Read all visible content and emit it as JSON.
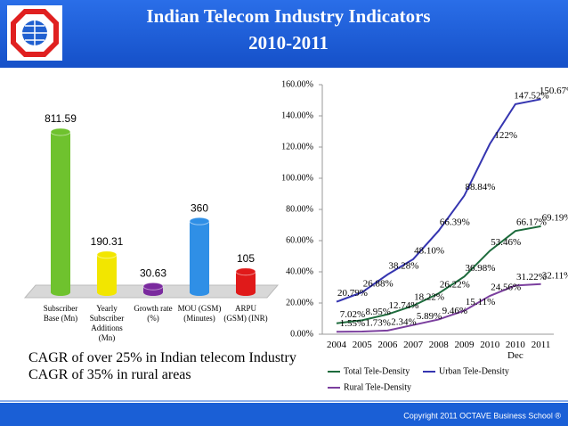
{
  "header": {
    "title": "Indian Telecom Industry Indicators",
    "subtitle": "2010-2011"
  },
  "chart_data": [
    {
      "type": "bar",
      "categories": [
        "Subscriber Base (Mn)",
        "Yearly Subscriber Additions (Mn)",
        "Growth rate (%)",
        "MOU (GSM) (Minutes)",
        "ARPU (GSM) (INR)"
      ],
      "values": [
        811.59,
        190.31,
        30.63,
        360,
        105
      ],
      "value_labels": [
        "811.59",
        "190.31",
        "30.63",
        "360",
        "105"
      ],
      "colors": [
        "#6fc22e",
        "#f2e600",
        "#7a2a9e",
        "#2f8fe6",
        "#e01a1a"
      ]
    },
    {
      "type": "line",
      "categories": [
        "2004",
        "2005",
        "2006",
        "2007",
        "2008",
        "2009",
        "2010",
        "2010 Dec",
        "2011"
      ],
      "ylim": [
        0,
        160
      ],
      "yticks": [
        {
          "value": 0,
          "label": "0.00%"
        },
        {
          "value": 20,
          "label": "20.00%"
        },
        {
          "value": 40,
          "label": "40.00%"
        },
        {
          "value": 60,
          "label": "60.00%"
        },
        {
          "value": 80,
          "label": "80.00%"
        },
        {
          "value": 100,
          "label": "100.00%"
        },
        {
          "value": 120,
          "label": "120.00%"
        },
        {
          "value": 140,
          "label": "140.00%"
        },
        {
          "value": 160,
          "label": "160.00%"
        }
      ],
      "series": [
        {
          "name": "Total Tele-Density",
          "color": "#1d6b3c",
          "values": [
            7.02,
            8.95,
            12.74,
            18.22,
            26.22,
            36.98,
            53.46,
            66.17,
            69.19
          ],
          "value_labels": [
            "7.02%",
            "8.95%",
            "12.74%",
            "18.22%",
            "26.22%",
            "36.98%",
            "53.46%",
            "66.17%",
            "69.19%"
          ]
        },
        {
          "name": "Urban Tele-Density",
          "color": "#3535b0",
          "values": [
            20.79,
            26.88,
            38.28,
            48.1,
            66.39,
            88.84,
            122,
            147.52,
            150.67
          ],
          "value_labels": [
            "20.79%",
            "26.88%",
            "38.28%",
            "48.10%",
            "66.39%",
            "88.84%",
            "122%",
            "147.52%",
            "150.67%"
          ]
        },
        {
          "name": "Rural Tele-Density",
          "color": "#7b3f9e",
          "values": [
            1.55,
            1.73,
            2.34,
            5.89,
            9.46,
            15.11,
            24.56,
            31.22,
            32.11
          ],
          "value_labels": [
            "1.55%",
            "1.73%",
            "2.34%",
            "5.89%",
            "9.46%",
            "15.11%",
            "24.56%",
            "31.22%",
            "32.11%"
          ]
        }
      ]
    }
  ],
  "notes": [
    "CAGR of over 25% in Indian telecom Industry",
    "CAGR of 35% in rural areas"
  ],
  "footer": "Copyright 2011   OCTAVE Business School ®"
}
